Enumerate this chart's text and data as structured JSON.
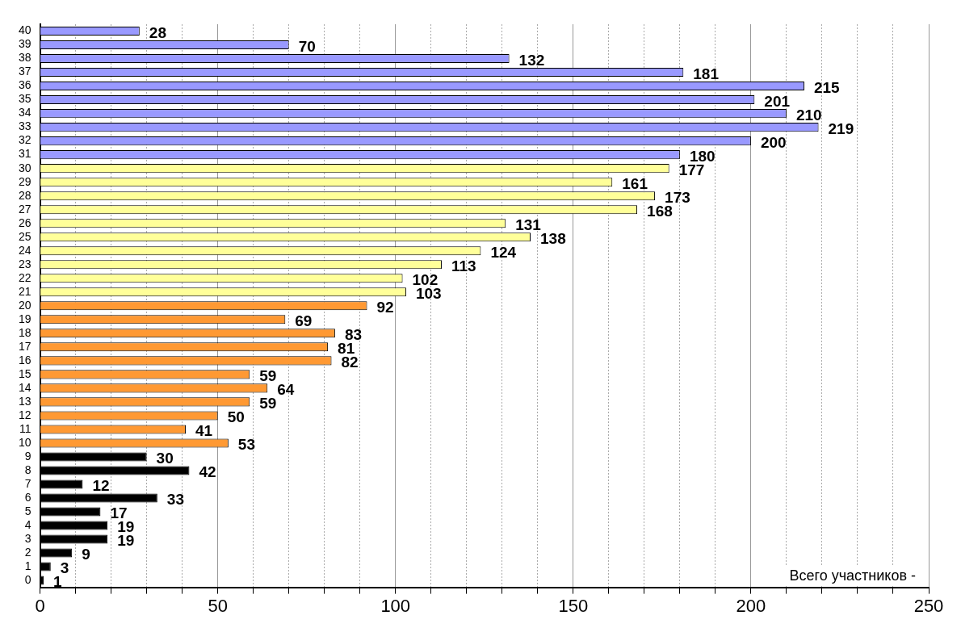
{
  "chart_data": {
    "type": "bar",
    "orientation": "horizontal",
    "categories": [
      "40",
      "39",
      "38",
      "37",
      "36",
      "35",
      "34",
      "33",
      "32",
      "31",
      "30",
      "29",
      "28",
      "27",
      "26",
      "25",
      "24",
      "23",
      "22",
      "21",
      "20",
      "19",
      "18",
      "17",
      "16",
      "15",
      "14",
      "13",
      "12",
      "11",
      "10",
      "9",
      "8",
      "7",
      "6",
      "5",
      "4",
      "3",
      "2",
      "1",
      "0"
    ],
    "values": [
      28,
      70,
      132,
      181,
      215,
      201,
      210,
      219,
      200,
      180,
      177,
      161,
      173,
      168,
      131,
      138,
      124,
      113,
      102,
      103,
      92,
      69,
      83,
      81,
      82,
      59,
      64,
      59,
      50,
      41,
      53,
      30,
      42,
      12,
      33,
      17,
      19,
      19,
      9,
      3,
      1
    ],
    "colors": [
      "#9999ff",
      "#9999ff",
      "#9999ff",
      "#9999ff",
      "#9999ff",
      "#9999ff",
      "#9999ff",
      "#9999ff",
      "#9999ff",
      "#9999ff",
      "#ffff99",
      "#ffff99",
      "#ffff99",
      "#ffff99",
      "#ffff99",
      "#ffff99",
      "#ffff99",
      "#ffff99",
      "#ffff99",
      "#ffff99",
      "#ff9933",
      "#ff9933",
      "#ff9933",
      "#ff9933",
      "#ff9933",
      "#ff9933",
      "#ff9933",
      "#ff9933",
      "#ff9933",
      "#ff9933",
      "#ff9933",
      "#000000",
      "#000000",
      "#000000",
      "#000000",
      "#000000",
      "#000000",
      "#000000",
      "#000000",
      "#000000",
      "#000000"
    ],
    "xlim": [
      0,
      250
    ],
    "xticks": [
      0,
      {
        "value": 10,
        "label": null
      },
      {
        "value": 20,
        "label": null
      },
      {
        "value": 30,
        "label": null
      },
      {
        "value": 40,
        "label": null
      },
      50,
      {
        "value": 60,
        "label": null
      },
      {
        "value": 70,
        "label": null
      },
      {
        "value": 80,
        "label": null
      },
      {
        "value": 90,
        "label": null
      },
      100,
      {
        "value": 110,
        "label": null
      },
      {
        "value": 120,
        "label": null
      },
      {
        "value": 130,
        "label": null
      },
      {
        "value": 140,
        "label": null
      },
      150,
      {
        "value": 160,
        "label": null
      },
      {
        "value": 170,
        "label": null
      },
      {
        "value": 180,
        "label": null
      },
      {
        "value": 190,
        "label": null
      },
      200,
      {
        "value": 210,
        "label": null
      },
      {
        "value": 220,
        "label": null
      },
      {
        "value": 230,
        "label": null
      },
      {
        "value": 240,
        "label": null
      },
      250
    ],
    "grid": "x",
    "data_labels": true,
    "legend": false,
    "annotations": [
      "Всего участников -"
    ]
  }
}
